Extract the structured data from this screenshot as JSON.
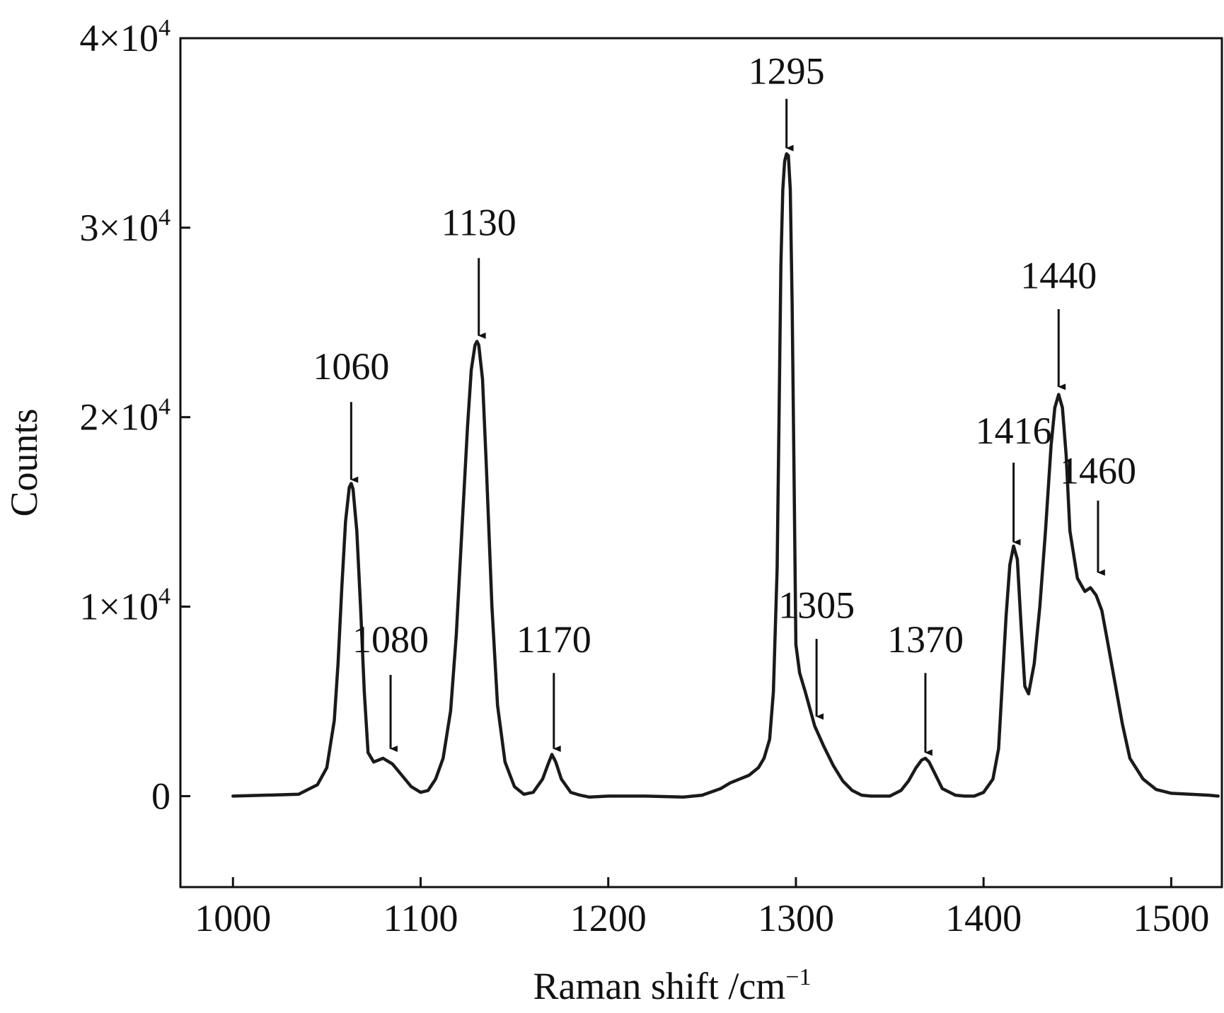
{
  "chart_data": {
    "type": "line",
    "title": "",
    "xlabel": "Raman shift /cm",
    "xlabel_superscript": "−1",
    "ylabel": "Counts",
    "xlim": [
      972,
      1527
    ],
    "ylim": [
      -4800,
      40000
    ],
    "grid": false,
    "legend": "none",
    "x_ticks": [
      {
        "value": 1000,
        "label": "1000"
      },
      {
        "value": 1100,
        "label": "1100"
      },
      {
        "value": 1200,
        "label": "1200"
      },
      {
        "value": 1300,
        "label": "1300"
      },
      {
        "value": 1400,
        "label": "1400"
      },
      {
        "value": 1500,
        "label": "1500"
      }
    ],
    "y_ticks": [
      {
        "value": 0,
        "label": "0",
        "exp": ""
      },
      {
        "value": 10000,
        "label": "1×10",
        "exp": "4"
      },
      {
        "value": 20000,
        "label": "2×10",
        "exp": "4"
      },
      {
        "value": 30000,
        "label": "3×10",
        "exp": "4"
      },
      {
        "value": 40000,
        "label": "4×10",
        "exp": "4"
      }
    ],
    "series": [
      {
        "color": "#1a1a1a",
        "x": [
          1000,
          1035,
          1045,
          1050,
          1054,
          1056,
          1058,
          1060,
          1062,
          1063,
          1064,
          1066,
          1068,
          1070,
          1072,
          1075,
          1080,
          1085,
          1090,
          1095,
          1100,
          1104,
          1108,
          1112,
          1116,
          1119,
          1122,
          1125,
          1127,
          1129,
          1130,
          1131,
          1133,
          1135,
          1138,
          1141,
          1145,
          1150,
          1155,
          1160,
          1165,
          1168,
          1170,
          1172,
          1175,
          1180,
          1185,
          1190,
          1200,
          1220,
          1240,
          1250,
          1260,
          1265,
          1270,
          1275,
          1280,
          1283,
          1286,
          1288,
          1290,
          1291,
          1292,
          1293,
          1294,
          1295,
          1296,
          1297,
          1298,
          1299,
          1300,
          1302,
          1305,
          1310,
          1315,
          1320,
          1325,
          1330,
          1335,
          1340,
          1350,
          1356,
          1360,
          1364,
          1367,
          1369,
          1371,
          1374,
          1378,
          1385,
          1390,
          1395,
          1400,
          1405,
          1408,
          1410,
          1412,
          1414,
          1416,
          1418,
          1420,
          1422,
          1424,
          1427,
          1430,
          1433,
          1436,
          1438,
          1440,
          1442,
          1444,
          1446,
          1450,
          1454,
          1457,
          1460,
          1463,
          1466,
          1470,
          1474,
          1478,
          1485,
          1492,
          1500,
          1510,
          1520,
          1525
        ],
        "values": [
          0,
          100,
          600,
          1500,
          4000,
          7000,
          11000,
          14500,
          16300,
          16500,
          16200,
          14000,
          10000,
          5500,
          2300,
          1800,
          2000,
          1700,
          1100,
          500,
          200,
          300,
          900,
          2000,
          4500,
          8500,
          14000,
          19500,
          22500,
          23800,
          24000,
          23800,
          22000,
          17500,
          10000,
          4800,
          1800,
          500,
          100,
          200,
          900,
          1700,
          2200,
          1800,
          900,
          200,
          50,
          -50,
          0,
          0,
          -50,
          50,
          400,
          700,
          900,
          1100,
          1500,
          2000,
          3000,
          5500,
          12000,
          20000,
          28000,
          32000,
          33500,
          33900,
          33800,
          32000,
          26000,
          17000,
          8000,
          6500,
          5500,
          3700,
          2600,
          1600,
          800,
          300,
          50,
          0,
          0,
          300,
          800,
          1500,
          1900,
          2000,
          1800,
          1200,
          400,
          50,
          0,
          0,
          200,
          900,
          2500,
          6000,
          9500,
          12200,
          13200,
          12500,
          9000,
          5800,
          5400,
          7000,
          10000,
          14000,
          18500,
          20500,
          21200,
          20500,
          18000,
          14000,
          11500,
          10800,
          11000,
          10600,
          9800,
          8200,
          6000,
          3800,
          2000,
          900,
          350,
          150,
          100,
          50,
          0
        ]
      }
    ],
    "annotations": [
      {
        "label": "1060",
        "x": 1063,
        "tip_y": 16700,
        "tail_y": 20800,
        "text_y": 22000
      },
      {
        "label": "1080",
        "x": 1084,
        "tip_y": 2500,
        "tail_y": 6400,
        "text_y": 7600
      },
      {
        "label": "1130",
        "x": 1131,
        "tip_y": 24300,
        "tail_y": 28400,
        "text_y": 29600
      },
      {
        "label": "1170",
        "x": 1171,
        "tip_y": 2500,
        "tail_y": 6500,
        "text_y": 7600
      },
      {
        "label": "1295",
        "x": 1295,
        "tip_y": 34200,
        "tail_y": 36800,
        "text_y": 37600
      },
      {
        "label": "1305",
        "x": 1311,
        "tip_y": 4200,
        "tail_y": 8300,
        "text_y": 9400
      },
      {
        "label": "1370",
        "x": 1369,
        "tip_y": 2300,
        "tail_y": 6500,
        "text_y": 7600
      },
      {
        "label": "1416",
        "x": 1416,
        "tip_y": 13400,
        "tail_y": 17600,
        "text_y": 18600
      },
      {
        "label": "1440",
        "x": 1440,
        "tip_y": 21600,
        "tail_y": 25700,
        "text_y": 26800
      },
      {
        "label": "1460",
        "x": 1461,
        "tip_y": 11800,
        "tail_y": 15600,
        "text_y": 16500
      }
    ]
  }
}
